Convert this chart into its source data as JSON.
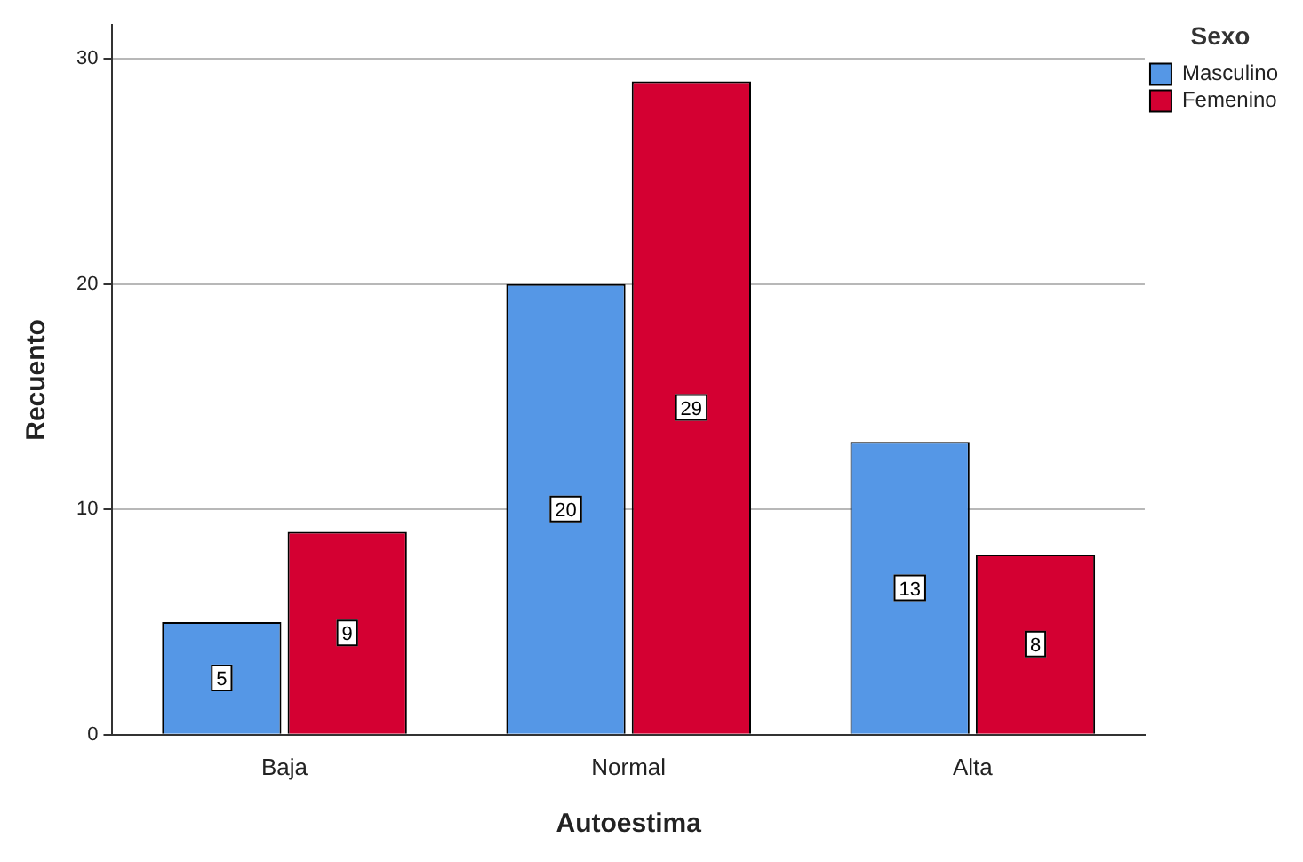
{
  "chart_data": {
    "type": "bar",
    "xlabel": "Autoestima",
    "ylabel": "Recuento",
    "legend_title": "Sexo",
    "categories": [
      "Baja",
      "Normal",
      "Alta"
    ],
    "series": [
      {
        "name": "Masculino",
        "color": "#5597e6",
        "values": [
          5,
          20,
          13
        ]
      },
      {
        "name": "Femenino",
        "color": "#d40032",
        "values": [
          9,
          29,
          8
        ]
      }
    ],
    "ylim": [
      0,
      31.5
    ],
    "yticks": [
      0,
      10,
      20,
      30
    ],
    "grid": "y",
    "legend": "top right",
    "data_labels": true
  }
}
